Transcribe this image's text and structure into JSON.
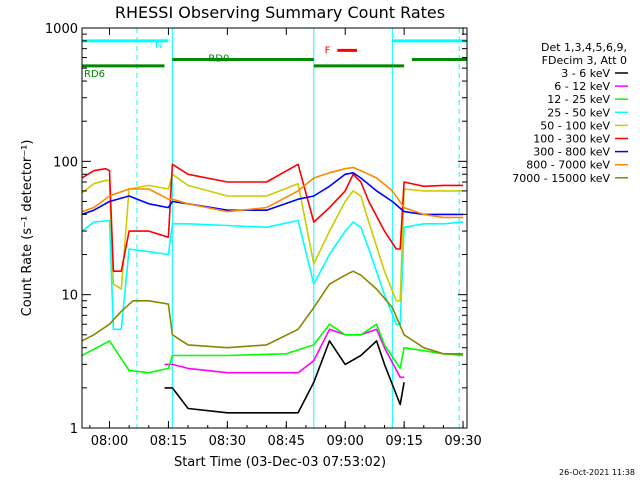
{
  "chart_data": {
    "type": "line",
    "title": "RHESSI Observing Summary Count Rates",
    "xlabel": "Start Time (03-Dec-03 07:53:02)",
    "ylabel": "Count Rate (s⁻¹ detector⁻¹)",
    "yscale": "log",
    "ylim": [
      1,
      1000
    ],
    "xlim": [
      "07:53",
      "09:31"
    ],
    "x_ticks": [
      "08:00",
      "08:15",
      "08:30",
      "08:45",
      "09:00",
      "09:15",
      "09:30"
    ],
    "y_ticks": [
      "1",
      "10",
      "100",
      "1000"
    ],
    "legend_header": [
      "Det 1,3,4,5,6,9,",
      "FDecim 3, Att 0"
    ],
    "legend_position": "right",
    "series": [
      {
        "name": "3 - 6 keV",
        "color": "#000000",
        "x": [
          "08:14",
          "08:16",
          "08:20",
          "08:30",
          "08:40",
          "08:48",
          "08:52",
          "08:56",
          "09:00",
          "09:04",
          "09:08",
          "09:10",
          "09:14",
          "09:15"
        ],
        "y": [
          2.0,
          2.0,
          1.4,
          1.3,
          1.3,
          1.3,
          2.2,
          4.5,
          3.0,
          3.5,
          4.5,
          3.0,
          1.5,
          2.2
        ]
      },
      {
        "name": "6 - 12 keV",
        "color": "#ff00ff",
        "x": [
          "08:14",
          "08:16",
          "08:20",
          "08:30",
          "08:40",
          "08:48",
          "08:52",
          "08:56",
          "09:00",
          "09:04",
          "09:08",
          "09:10",
          "09:14",
          "09:15"
        ],
        "y": [
          3.0,
          3.0,
          2.8,
          2.6,
          2.6,
          2.6,
          3.2,
          5.5,
          5.0,
          5.0,
          5.5,
          4.0,
          2.4,
          2.4
        ]
      },
      {
        "name": "12 - 25 keV",
        "color": "#00ff00",
        "x": [
          "07:53",
          "08:00",
          "08:05",
          "08:10",
          "08:15",
          "08:16",
          "08:30",
          "08:45",
          "08:52",
          "08:56",
          "09:00",
          "09:04",
          "09:08",
          "09:10",
          "09:14",
          "09:15",
          "09:20",
          "09:25",
          "09:30"
        ],
        "y": [
          3.5,
          4.5,
          2.7,
          2.6,
          2.8,
          3.5,
          3.5,
          3.6,
          4.2,
          6.0,
          5.0,
          5.0,
          6.0,
          4.2,
          2.8,
          4.0,
          3.8,
          3.6,
          3.5
        ]
      },
      {
        "name": "25 - 50 keV",
        "color": "#00ffff",
        "x": [
          "07:53",
          "07:56",
          "08:00",
          "08:01",
          "08:03",
          "08:05",
          "08:10",
          "08:15",
          "08:16",
          "08:20",
          "08:30",
          "08:40",
          "08:48",
          "08:52",
          "08:56",
          "09:00",
          "09:02",
          "09:04",
          "09:06",
          "09:10",
          "09:13",
          "09:14",
          "09:15",
          "09:20",
          "09:25",
          "09:30"
        ],
        "y": [
          30,
          35,
          36,
          5.5,
          5.5,
          22,
          21,
          20,
          34,
          34,
          33,
          32,
          36,
          12,
          20,
          30,
          35,
          32,
          22,
          10,
          6,
          6,
          32,
          34,
          34,
          35
        ]
      },
      {
        "name": "50 - 100 keV",
        "color": "#cccc00",
        "x": [
          "07:53",
          "07:56",
          "07:59",
          "08:00",
          "08:01",
          "08:03",
          "08:05",
          "08:10",
          "08:15",
          "08:16",
          "08:20",
          "08:30",
          "08:40",
          "08:48",
          "08:52",
          "08:56",
          "09:00",
          "09:02",
          "09:04",
          "09:06",
          "09:10",
          "09:13",
          "09:14",
          "09:15",
          "09:20",
          "09:25",
          "09:30"
        ],
        "y": [
          58,
          68,
          72,
          72,
          12,
          11,
          62,
          66,
          62,
          80,
          66,
          55,
          55,
          68,
          17,
          30,
          50,
          60,
          55,
          35,
          15,
          9,
          9,
          62,
          60,
          60,
          60
        ]
      },
      {
        "name": "100 - 300 keV",
        "color": "#ff0000",
        "x": [
          "07:53",
          "07:56",
          "07:59",
          "08:00",
          "08:01",
          "08:03",
          "08:05",
          "08:10",
          "08:15",
          "08:16",
          "08:20",
          "08:30",
          "08:40",
          "08:48",
          "08:52",
          "08:56",
          "09:00",
          "09:02",
          "09:04",
          "09:06",
          "09:10",
          "09:13",
          "09:14",
          "09:15",
          "09:20",
          "09:25",
          "09:30"
        ],
        "y": [
          75,
          85,
          88,
          85,
          15,
          15,
          30,
          30,
          27,
          95,
          80,
          70,
          70,
          95,
          35,
          45,
          60,
          80,
          70,
          50,
          30,
          22,
          22,
          70,
          65,
          66,
          66
        ]
      },
      {
        "name": "300 - 800 keV",
        "color": "#0000ff",
        "x": [
          "07:53",
          "07:56",
          "08:00",
          "08:05",
          "08:10",
          "08:15",
          "08:16",
          "08:20",
          "08:30",
          "08:40",
          "08:48",
          "08:52",
          "08:56",
          "09:00",
          "09:02",
          "09:04",
          "09:08",
          "09:12",
          "09:15",
          "09:20",
          "09:25",
          "09:30"
        ],
        "y": [
          40,
          43,
          50,
          55,
          48,
          45,
          50,
          48,
          43,
          43,
          52,
          55,
          65,
          80,
          82,
          75,
          60,
          50,
          42,
          40,
          40,
          40
        ]
      },
      {
        "name": "800 - 7000 keV",
        "color": "#ff8800",
        "x": [
          "07:53",
          "07:56",
          "08:00",
          "08:05",
          "08:10",
          "08:15",
          "08:16",
          "08:20",
          "08:30",
          "08:40",
          "08:48",
          "08:52",
          "08:56",
          "09:00",
          "09:02",
          "09:04",
          "09:08",
          "09:12",
          "09:15",
          "09:20",
          "09:25",
          "09:30"
        ],
        "y": [
          42,
          45,
          55,
          62,
          62,
          52,
          52,
          48,
          42,
          45,
          60,
          75,
          82,
          88,
          90,
          85,
          75,
          60,
          45,
          40,
          38,
          38
        ]
      },
      {
        "name": "7000 - 15000 keV",
        "color": "#888800",
        "x": [
          "07:53",
          "07:56",
          "08:00",
          "08:03",
          "08:06",
          "08:10",
          "08:15",
          "08:16",
          "08:20",
          "08:30",
          "08:40",
          "08:48",
          "08:52",
          "08:56",
          "09:00",
          "09:02",
          "09:04",
          "09:08",
          "09:12",
          "09:15",
          "09:20",
          "09:25",
          "09:30"
        ],
        "y": [
          4.5,
          5.0,
          6.0,
          7.5,
          9.0,
          9.0,
          8.5,
          5.0,
          4.2,
          4.0,
          4.2,
          5.5,
          8.0,
          12,
          14,
          15,
          14,
          11,
          8,
          5,
          4,
          3.6,
          3.6
        ]
      }
    ],
    "state_bars": [
      {
        "label": "N",
        "color": "#00ffff",
        "level": 800,
        "segments": [
          [
            "07:53",
            "08:15"
          ],
          [
            "09:12",
            "09:31"
          ]
        ]
      },
      {
        "label": "RD0",
        "color": "#008800",
        "level": 580,
        "segments": [
          [
            "08:16",
            "08:52"
          ],
          [
            "09:17",
            "09:31"
          ]
        ]
      },
      {
        "label": "RD6",
        "color": "#008800",
        "level": 520,
        "segments": [
          [
            "07:53",
            "08:14"
          ],
          [
            "08:52",
            "09:15"
          ]
        ]
      },
      {
        "label": "F",
        "color": "#ff0000",
        "level": 680,
        "segments": [
          [
            "08:58",
            "09:03"
          ]
        ]
      }
    ],
    "vertical_markers": [
      {
        "color": "#00ffff",
        "style": "solid",
        "x": [
          "08:16",
          "08:52",
          "09:12"
        ]
      },
      {
        "color": "#00ffff",
        "style": "dashed",
        "x": [
          "08:07",
          "09:29"
        ]
      }
    ]
  },
  "footer": {
    "timestamp": "26-Oct-2021 11:38"
  }
}
